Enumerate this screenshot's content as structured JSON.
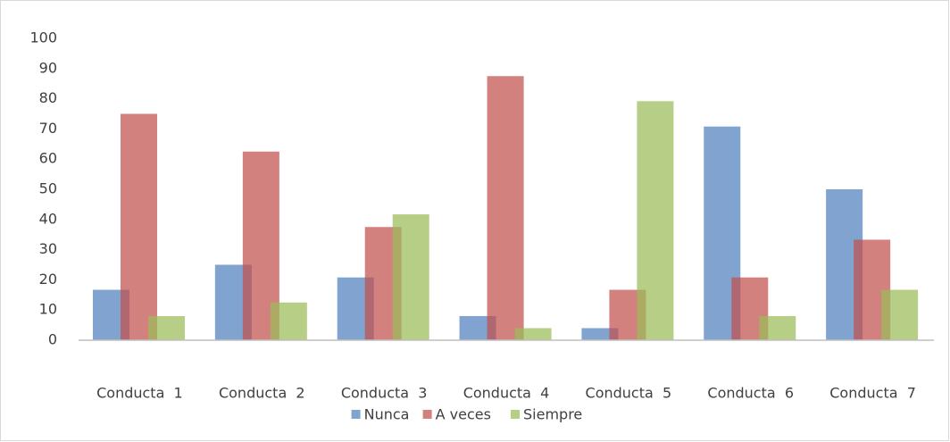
{
  "chart_data": {
    "type": "bar",
    "categories": [
      "Conducta  1",
      "Conducta  2",
      "Conducta  3",
      "Conducta  4",
      "Conducta  5",
      "Conducta  6",
      "Conducta  7"
    ],
    "series": [
      {
        "name": "Nunca",
        "color": "#4f81bd",
        "values": [
          16.7,
          25,
          20.8,
          8,
          4,
          70.8,
          50
        ]
      },
      {
        "name": "A veces",
        "color": "#c0504d",
        "values": [
          75,
          62.5,
          37.5,
          87.5,
          16.7,
          20.8,
          33.3
        ]
      },
      {
        "name": "Siempre",
        "color": "#9bbb59",
        "values": [
          8,
          12.5,
          41.7,
          4,
          79.2,
          8,
          16.7
        ]
      }
    ],
    "ylim": [
      0,
      100
    ],
    "yticks": [
      0,
      10,
      20,
      30,
      40,
      50,
      60,
      70,
      80,
      90,
      100
    ],
    "grid": false,
    "legend": "bottom"
  }
}
